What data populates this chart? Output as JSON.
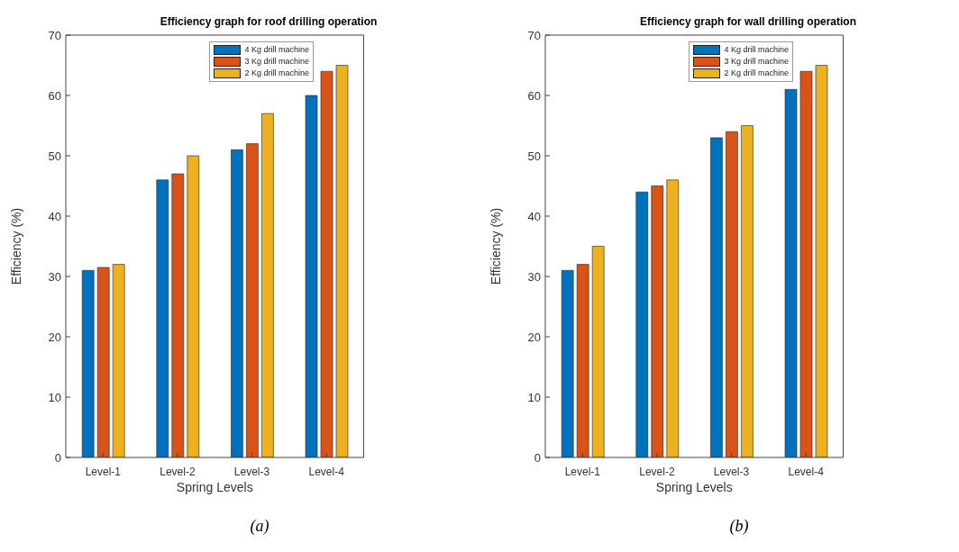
{
  "chart_data": [
    {
      "type": "bar",
      "title": "Efficiency graph for roof drilling operation",
      "xlabel": "Spring Levels",
      "ylabel": "Efficiency (%)",
      "categories": [
        "Level-1",
        "Level-2",
        "Level-3",
        "Level-4"
      ],
      "series": [
        {
          "name": "4 Kg drill machine",
          "color": "#0072bd",
          "values": [
            31,
            46,
            51,
            60
          ]
        },
        {
          "name": "3 Kg drill machine",
          "color": "#d95319",
          "values": [
            31.5,
            47,
            52,
            64
          ]
        },
        {
          "name": "2 Kg drill machine",
          "color": "#edb120",
          "values": [
            32,
            50,
            57,
            65
          ]
        }
      ],
      "ylim": [
        0,
        70
      ],
      "yticks": [
        0,
        10,
        20,
        30,
        40,
        50,
        60,
        70
      ],
      "grid": false,
      "legend": "top right",
      "annotations": [
        "(a)"
      ]
    },
    {
      "type": "bar",
      "title": "Efficiency graph for wall drilling operation",
      "xlabel": "Spring Levels",
      "ylabel": "Efficiency (%)",
      "categories": [
        "Level-1",
        "Level-2",
        "Level-3",
        "Level-4"
      ],
      "series": [
        {
          "name": "4 Kg drill machine",
          "color": "#0072bd",
          "values": [
            31,
            44,
            53,
            61
          ]
        },
        {
          "name": "3 Kg drill machine",
          "color": "#d95319",
          "values": [
            32,
            45,
            54,
            64
          ]
        },
        {
          "name": "2 Kg drill machine",
          "color": "#edb120",
          "values": [
            35,
            46,
            55,
            65
          ]
        }
      ],
      "ylim": [
        0,
        70
      ],
      "yticks": [
        0,
        10,
        20,
        30,
        40,
        50,
        60,
        70
      ],
      "grid": false,
      "legend": "top right",
      "annotations": [
        "(b)"
      ]
    }
  ]
}
